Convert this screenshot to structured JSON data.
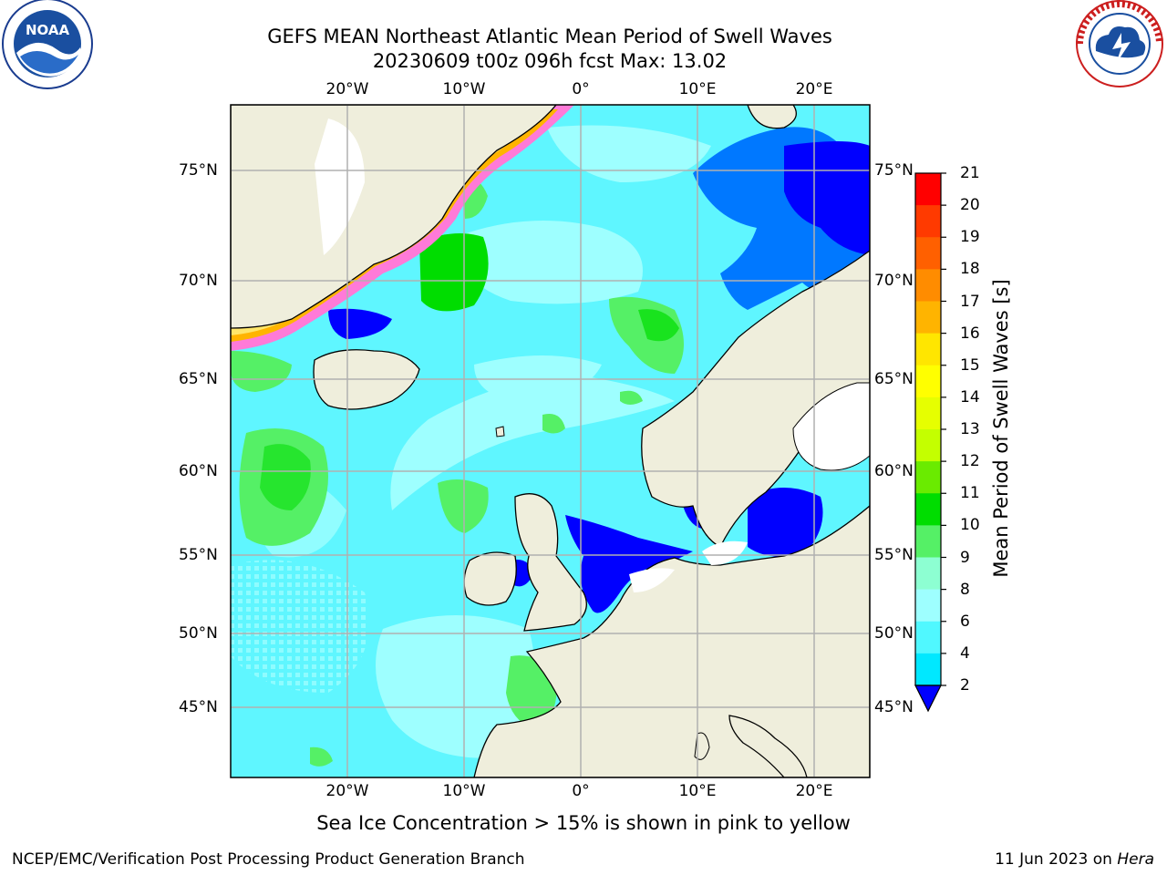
{
  "title_line1": "GEFS MEAN Northeast Atlantic Mean Period of Swell Waves",
  "title_line2": "20230609 t00z 096h fcst   Max: 13.02",
  "logos": {
    "left": "noaa-logo",
    "right": "nws-logo"
  },
  "map": {
    "lon_labels": [
      "20°W",
      "10°W",
      "0°",
      "10°E",
      "20°E"
    ],
    "lat_labels": [
      "75°N",
      "70°N",
      "65°N",
      "60°N",
      "55°N",
      "50°N",
      "45°N"
    ],
    "colors": {
      "ocean_base": "#9effff",
      "land": "#efeedc",
      "coast": "#000000",
      "grid": "#b0b0b0"
    }
  },
  "colorbar": {
    "label": "Mean Period of Swell Waves [s]",
    "ticks": [
      "21",
      "20",
      "19",
      "18",
      "17",
      "16",
      "15",
      "14",
      "13",
      "12",
      "11",
      "10",
      "9",
      "8",
      "6",
      "4",
      "2"
    ],
    "colors": [
      "#ff0000",
      "#ff3a00",
      "#ff6000",
      "#ff8c00",
      "#ffb400",
      "#ffe600",
      "#ffff00",
      "#e6ff00",
      "#c4ff00",
      "#6aeb00",
      "#00dd00",
      "#55f066",
      "#8dffd2",
      "#9effff",
      "#50f8ff",
      "#00e8ff",
      "#0078ff"
    ],
    "extend_color": "#0000ff"
  },
  "caption": "Sea Ice Concentration > 15% is shown in pink to yellow",
  "footer_left": "NCEP/EMC/Verification Post Processing Product Generation Branch",
  "footer_right_date": "11 Jun 2023 on ",
  "footer_right_host": "Hera"
}
